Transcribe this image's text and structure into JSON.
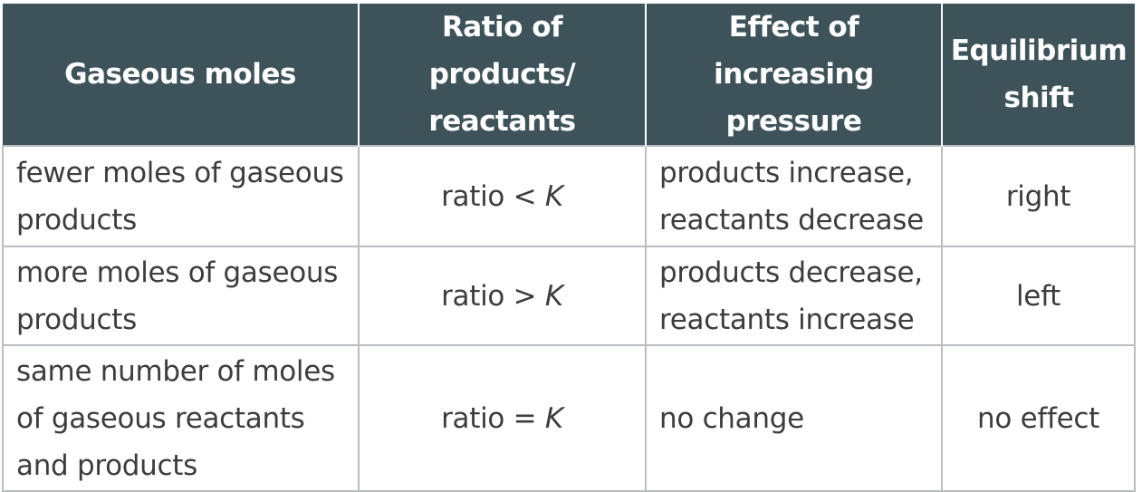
{
  "headers": [
    "Gaseous moles",
    "Ratio of products/ reactants",
    "Effect of increasing pressure",
    "Equilibrium shift"
  ],
  "rows": [
    {
      "gaseous_moles": "fewer moles of gaseous products",
      "ratio_prefix": "ratio < ",
      "ratio_symbol": "K",
      "effect": "products increase, reactants decrease",
      "shift": "right"
    },
    {
      "gaseous_moles": "more moles of gaseous products",
      "ratio_prefix": "ratio > ",
      "ratio_symbol": "K",
      "effect": "products decrease, reactants increase",
      "shift": "left"
    },
    {
      "gaseous_moles": "same number of moles of gaseous reactants and products",
      "ratio_prefix": "ratio = ",
      "ratio_symbol": "K",
      "effect": "no change",
      "shift": "no effect"
    }
  ]
}
